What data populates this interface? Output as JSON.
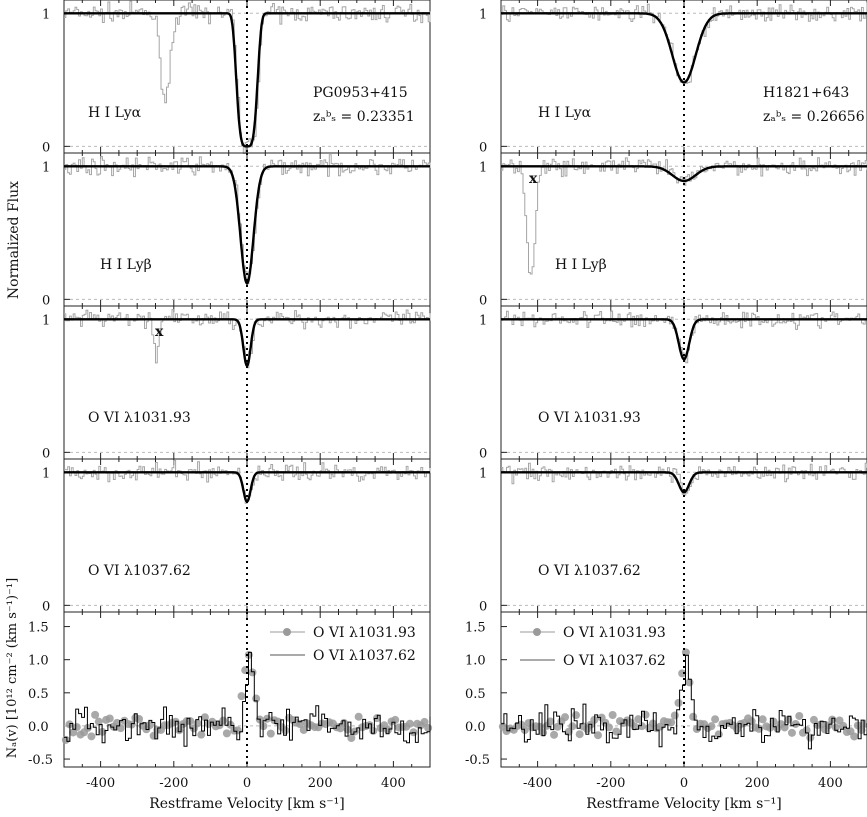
{
  "figure": {
    "ylabel_flux": "Normalized Flux",
    "ylabel_na": "Nₐ(v) [10¹² cm⁻² (km s⁻¹)⁻¹]",
    "xlabel": "Restframe Velocity [km s⁻¹]"
  },
  "columns": [
    {
      "sightline": "PG0953+415",
      "zabs": "zₐᵇₛ = 0.23351"
    },
    {
      "sightline": "H1821+643",
      "zabs": "zₐᵇₛ = 0.26656"
    }
  ],
  "colors": {
    "data": "#a6a6a6",
    "model": "#000000",
    "dots": "#9a9a9a",
    "grid": "#bbbbbb"
  },
  "chart_data": [
    {
      "type": "line",
      "column": 0,
      "row": 0,
      "ion": "H I Lyα",
      "xlim": [
        -500,
        500
      ],
      "ylim": [
        -0.05,
        1.1
      ],
      "yticks": [
        0,
        1
      ],
      "model": {
        "depth": 1.0,
        "b": 32,
        "flat_core": true
      },
      "features": [
        {
          "center": -225,
          "depth": 0.65,
          "width": 18
        }
      ],
      "contamination_mark": null
    },
    {
      "type": "line",
      "column": 0,
      "row": 1,
      "ion": "H I Lyβ",
      "xlim": [
        -500,
        500
      ],
      "ylim": [
        -0.05,
        1.1
      ],
      "yticks": [
        0,
        1
      ],
      "model": {
        "depth": 0.88,
        "b": 25
      },
      "features": [],
      "contamination_mark": null
    },
    {
      "type": "line",
      "column": 0,
      "row": 2,
      "ion": "O VI λ1031.93",
      "xlim": [
        -500,
        500
      ],
      "ylim": [
        -0.05,
        1.1
      ],
      "yticks": [
        0,
        1
      ],
      "model": {
        "depth": 0.35,
        "b": 14
      },
      "features": [
        {
          "center": -250,
          "depth": 0.25,
          "width": 10
        }
      ],
      "contamination_mark": {
        "x": -240,
        "label": "x"
      }
    },
    {
      "type": "line",
      "column": 0,
      "row": 3,
      "ion": "O VI λ1037.62",
      "xlim": [
        -500,
        500
      ],
      "ylim": [
        -0.05,
        1.1
      ],
      "yticks": [
        0,
        1
      ],
      "model": {
        "depth": 0.22,
        "b": 14
      },
      "features": [],
      "contamination_mark": null
    },
    {
      "type": "line",
      "column": 0,
      "row": 4,
      "panel": "column-density",
      "xlim": [
        -500,
        500
      ],
      "ylim": [
        -0.62,
        1.72
      ],
      "yticks": [
        -0.5,
        0.0,
        0.5,
        1.0,
        1.5
      ],
      "xticks": [
        -400,
        -200,
        0,
        200,
        400
      ],
      "legend": [
        "O VI λ1031.93",
        "O VI λ1037.62"
      ],
      "peak": {
        "center": 5,
        "height": 1.05,
        "width": 18
      }
    },
    {
      "type": "line",
      "column": 1,
      "row": 0,
      "ion": "H I Lyα",
      "xlim": [
        -500,
        500
      ],
      "ylim": [
        -0.05,
        1.1
      ],
      "yticks": [
        0,
        1
      ],
      "model": {
        "depth": 0.52,
        "b": 45
      },
      "features": [],
      "contamination_mark": null
    },
    {
      "type": "line",
      "column": 1,
      "row": 1,
      "ion": "H I Lyβ",
      "xlim": [
        -500,
        500
      ],
      "ylim": [
        -0.05,
        1.1
      ],
      "yticks": [
        0,
        1
      ],
      "model": {
        "depth": 0.11,
        "b": 45
      },
      "features": [
        {
          "center": -420,
          "depth": 0.85,
          "width": 15
        }
      ],
      "contamination_mark": {
        "x": -425,
        "label": "x"
      }
    },
    {
      "type": "line",
      "column": 1,
      "row": 2,
      "ion": "O VI λ1031.93",
      "xlim": [
        -500,
        500
      ],
      "ylim": [
        -0.05,
        1.1
      ],
      "yticks": [
        0,
        1
      ],
      "model": {
        "depth": 0.3,
        "b": 20
      },
      "features": [],
      "contamination_mark": null
    },
    {
      "type": "line",
      "column": 1,
      "row": 3,
      "ion": "O VI λ1037.62",
      "xlim": [
        -500,
        500
      ],
      "ylim": [
        -0.05,
        1.1
      ],
      "yticks": [
        0,
        1
      ],
      "model": {
        "depth": 0.15,
        "b": 20
      },
      "features": [],
      "contamination_mark": null
    },
    {
      "type": "line",
      "column": 1,
      "row": 4,
      "panel": "column-density",
      "xlim": [
        -500,
        500
      ],
      "ylim": [
        -0.62,
        1.72
      ],
      "yticks": [
        -0.5,
        0.0,
        0.5,
        1.0,
        1.5
      ],
      "xticks": [
        -400,
        -200,
        0,
        200,
        400
      ],
      "legend": [
        "O VI λ1031.93",
        "O VI λ1037.62"
      ],
      "peak": {
        "center": 5,
        "height": 0.95,
        "width": 18
      }
    }
  ]
}
